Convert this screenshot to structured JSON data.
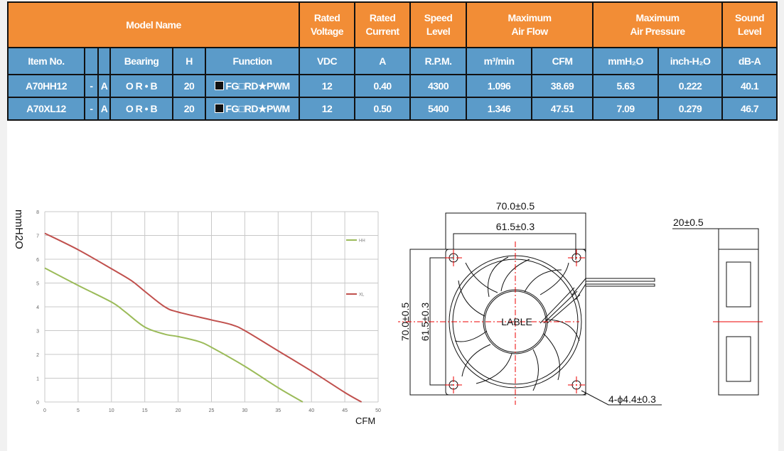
{
  "table": {
    "header_top": [
      "Model Name",
      "Rated\nVoltage",
      "Rated\nCurrent",
      "Speed\nLevel",
      "Maximum\nAir Flow",
      "Maximum\nAir Pressure",
      "Sound\nLevel"
    ],
    "header_units": {
      "item": "Item No.",
      "bearing": "Bearing",
      "h": "H",
      "function": "Function",
      "vdc": "VDC",
      "amp": "A",
      "rpm": "R.P.M.",
      "m3": "m³/min",
      "cfm": "CFM",
      "mmh2o": "mmH₂O",
      "inch": "inch-H₂O",
      "db": "dB-A"
    },
    "rows": [
      {
        "item": "A70HH12",
        "dash": "-",
        "a": "A",
        "bearing": "O R • B",
        "h": "20",
        "function": "FG□RD★PWM",
        "vdc": "12",
        "amp": "0.40",
        "rpm": "4300",
        "m3": "1.096",
        "cfm": "38.69",
        "mmh2o": "5.63",
        "inch": "0.222",
        "db": "40.1"
      },
      {
        "item": "A70XL12",
        "dash": "-",
        "a": "A",
        "bearing": "O R • B",
        "h": "20",
        "function": "FG□RD★PWM",
        "vdc": "12",
        "amp": "0.50",
        "rpm": "5400",
        "m3": "1.346",
        "cfm": "47.51",
        "mmh2o": "7.09",
        "inch": "0.279",
        "db": "46.7"
      }
    ],
    "colors": {
      "header": "#f28d36",
      "body": "#5b9bc9"
    }
  },
  "chart_data": {
    "type": "line",
    "xlabel": "CFM",
    "ylabel": "mmH2O",
    "xlim": [
      0,
      50
    ],
    "ylim": [
      0,
      8
    ],
    "xticks": [
      "0",
      "5",
      "10",
      "15",
      "20",
      "25",
      "30",
      "35",
      "40",
      "45",
      "50"
    ],
    "yticks": [
      "0",
      "1",
      "2",
      "3",
      "4",
      "5",
      "6",
      "7",
      "8"
    ],
    "grid": true,
    "legend": "right",
    "series": [
      {
        "name": "HH",
        "color": "#9bbb59",
        "x": [
          0,
          5,
          10,
          12,
          15,
          18,
          20,
          23,
          25,
          30,
          35,
          38.69
        ],
        "y": [
          5.63,
          4.9,
          4.2,
          3.8,
          3.15,
          2.85,
          2.75,
          2.55,
          2.3,
          1.5,
          0.6,
          0
        ]
      },
      {
        "name": "XL",
        "color": "#c0504d",
        "x": [
          0,
          5,
          10,
          13,
          15,
          18,
          20,
          25,
          28,
          30,
          35,
          40,
          45,
          47.51
        ],
        "y": [
          7.09,
          6.4,
          5.6,
          5.1,
          4.65,
          4.0,
          3.78,
          3.45,
          3.25,
          3.0,
          2.15,
          1.3,
          0.4,
          0
        ]
      }
    ]
  },
  "drawing": {
    "width_outer": "70.0±0.5",
    "width_holes": "61.5±0.3",
    "height_outer": "70.0±0.5",
    "height_holes": "61.5±0.3",
    "label": "LABLE",
    "holes": "4-ϕ4.4±0.3",
    "thickness": "20±0.5"
  }
}
